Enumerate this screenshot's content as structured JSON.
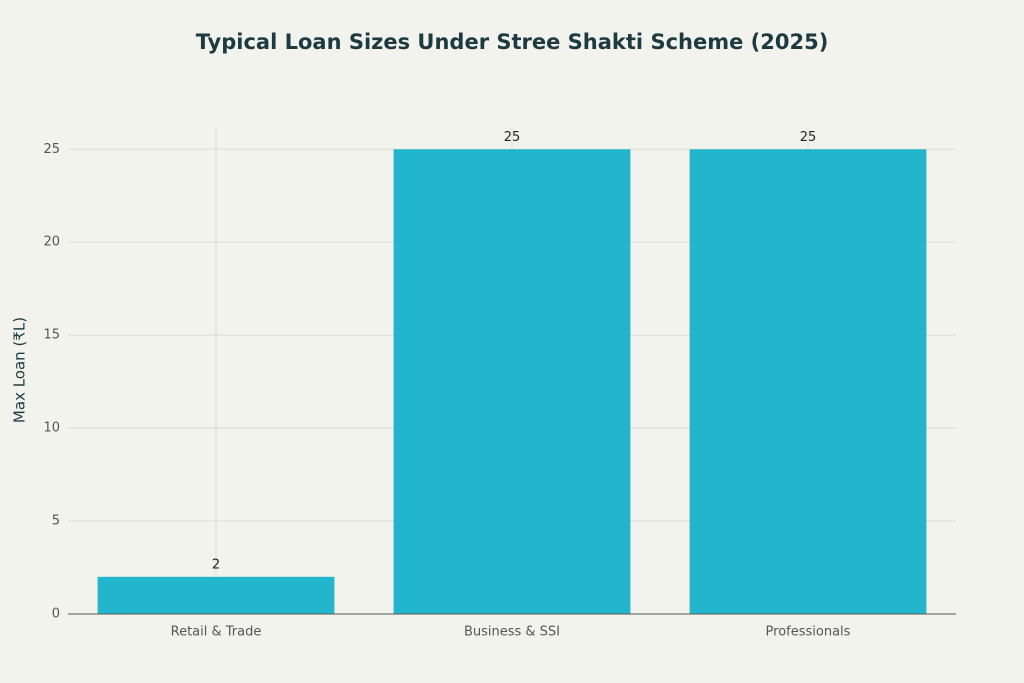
{
  "chart_data": {
    "type": "bar",
    "title": "Typical Loan Sizes Under Stree Shakti Scheme (2025)",
    "y_label": "Max Loan (₹L)",
    "categories": [
      "Retail & Trade",
      "Business & SSI",
      "Professionals"
    ],
    "values": [
      2,
      25,
      25
    ],
    "color": "#22b6cc",
    "ylim": [
      0,
      26.2
    ],
    "yticks": [
      0,
      5,
      10,
      15,
      20,
      25
    ],
    "grid": true
  }
}
